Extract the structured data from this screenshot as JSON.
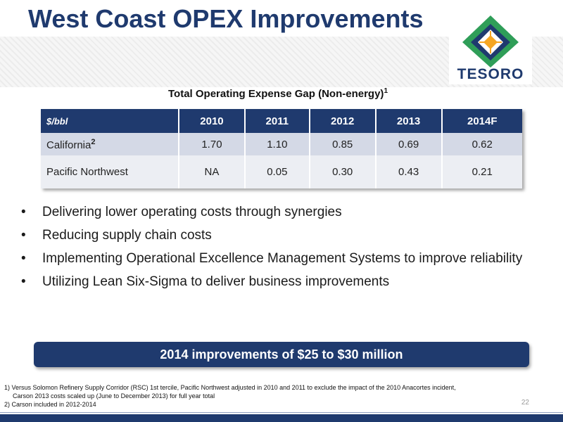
{
  "slide": {
    "title": "West Coast OPEX Improvements",
    "page_number": "22"
  },
  "logo": {
    "text": "TESORO",
    "icon": "tesoro-diamond-logo-icon",
    "colors": {
      "green": "#2f9e58",
      "blue": "#1f3a6e",
      "orange": "#f5a623"
    }
  },
  "table": {
    "title": "Total Operating Expense Gap (Non-energy)",
    "title_sup": "1",
    "unit_header": "$/bbl",
    "columns": [
      "2010",
      "2011",
      "2012",
      "2013",
      "2014F"
    ],
    "rows": [
      {
        "label": "California",
        "label_sup": "2",
        "values": [
          "1.70",
          "1.10",
          "0.85",
          "0.69",
          "0.62"
        ]
      },
      {
        "label": "Pacific Northwest",
        "label_sup": "",
        "values": [
          "NA",
          "0.05",
          "0.30",
          "0.43",
          "0.21"
        ]
      }
    ]
  },
  "bullets": [
    "Delivering lower operating costs through synergies",
    "Reducing supply chain costs",
    "Implementing Operational Excellence Management Systems to improve reliability",
    "Utilizing Lean Six-Sigma to deliver business improvements"
  ],
  "bullet_char": "•",
  "callout": "2014 improvements of $25 to $30 million",
  "footnotes": {
    "note1_a": "1) Versus Solomon Refinery Supply Corridor (RSC) 1st tercile, Pacific Northwest adjusted in 2010 and 2011 to exclude the impact of the 2010 Anacortes incident,",
    "note1_b": "Carson 2013 costs scaled up (June to December 2013) for full year total",
    "note2": "2) Carson included in 2012-2014"
  },
  "colors": {
    "brand_blue": "#1f3a6e",
    "row1": "#d4d9e6",
    "row2": "#eceef3"
  }
}
